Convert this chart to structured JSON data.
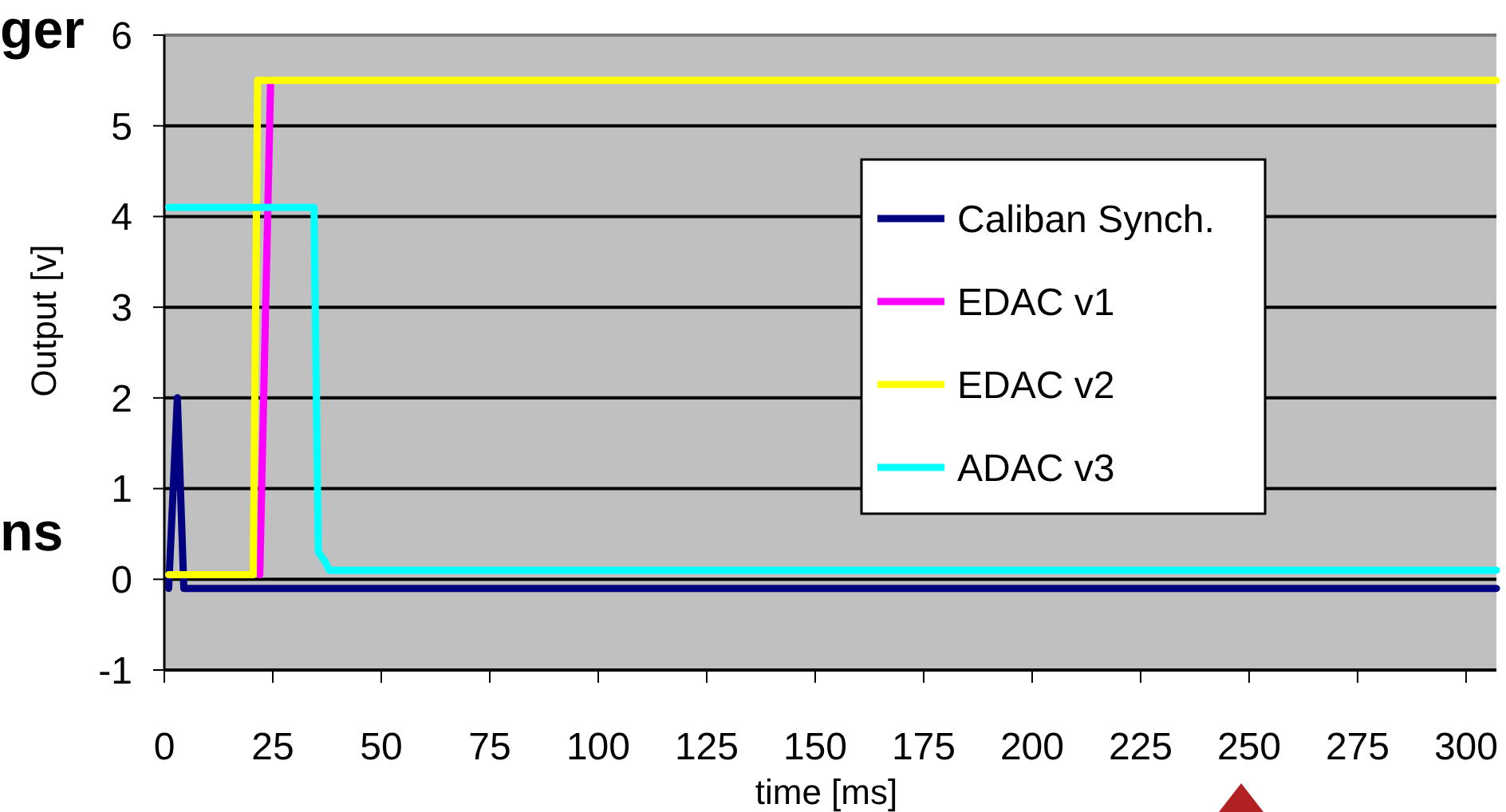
{
  "chart_data": {
    "type": "line",
    "xlabel": "time [ms]",
    "ylabel": "Output [v]",
    "xlim": [
      0,
      307
    ],
    "xticks": [
      0,
      25,
      50,
      75,
      100,
      125,
      150,
      175,
      200,
      225,
      250,
      275,
      300
    ],
    "ylim": [
      -1,
      6
    ],
    "yticks": [
      -1,
      0,
      1,
      2,
      3,
      4,
      5,
      6
    ],
    "grid": "y",
    "legend": "right",
    "line_style": "solid",
    "marker": "none",
    "annotations": [
      "ger",
      "ns"
    ],
    "series": [
      {
        "name": "Caliban Synch.",
        "color": "#000080",
        "x": [
          1,
          3,
          4.5,
          307
        ],
        "values": [
          -0.1,
          2,
          -0.1,
          -0.1
        ]
      },
      {
        "name": "EDAC v1",
        "color": "#ff00ff",
        "x": [
          22,
          24.5
        ],
        "values": [
          0.05,
          5.5
        ]
      },
      {
        "name": "EDAC v2",
        "color": "#ffff00",
        "x": [
          1,
          20.5,
          21.5,
          307
        ],
        "values": [
          0.05,
          0.05,
          5.5,
          5.5
        ]
      },
      {
        "name": "ADAC v3",
        "color": "#00ffff",
        "x": [
          1,
          34.5,
          35.5,
          37,
          38,
          307
        ],
        "values": [
          4.1,
          4.1,
          0.3,
          0.2,
          0.1,
          0.1
        ]
      }
    ]
  }
}
